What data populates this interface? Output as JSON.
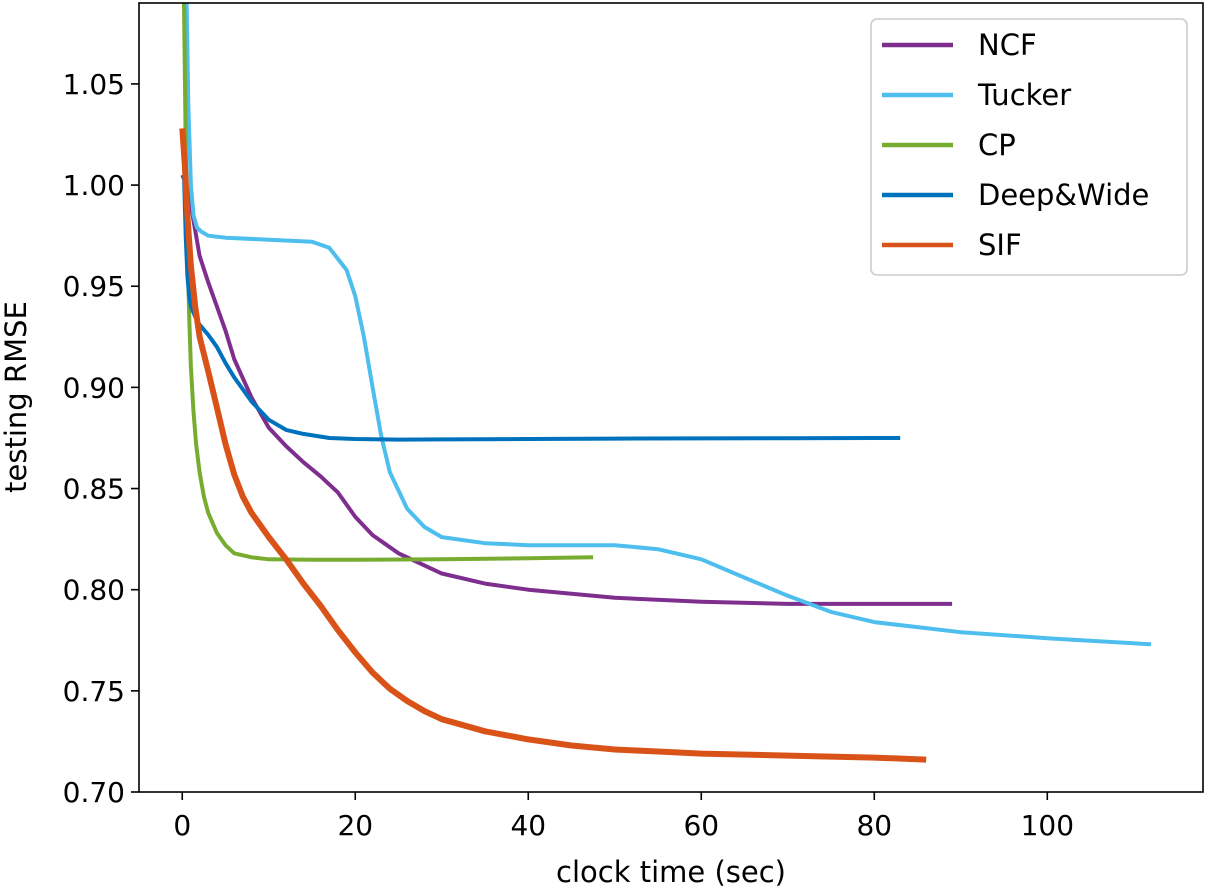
{
  "chart_data": {
    "type": "line",
    "title": "",
    "xlabel": "clock time (sec)",
    "ylabel": "testing RMSE",
    "xlim": [
      -5,
      118
    ],
    "ylim": [
      0.7,
      1.09
    ],
    "xticks": [
      0,
      20,
      40,
      60,
      80,
      100
    ],
    "xtick_labels": [
      "0",
      "20",
      "40",
      "60",
      "80",
      "100"
    ],
    "yticks": [
      0.7,
      0.75,
      0.8,
      0.85,
      0.9,
      0.95,
      1.0,
      1.05
    ],
    "ytick_labels": [
      "0.70",
      "0.75",
      "0.80",
      "0.85",
      "0.90",
      "0.95",
      "1.00",
      "1.05"
    ],
    "grid": false,
    "legend_position": "top-right",
    "series": [
      {
        "name": "NCF",
        "color": "#7e2f8e",
        "x": [
          0,
          0.5,
          1,
          2,
          3,
          4,
          5,
          6,
          8,
          10,
          12,
          14,
          16,
          18,
          20,
          22,
          25,
          30,
          35,
          40,
          45,
          50,
          60,
          70,
          80,
          89
        ],
        "y": [
          1.005,
          1.0,
          0.99,
          0.965,
          0.952,
          0.94,
          0.928,
          0.914,
          0.895,
          0.88,
          0.871,
          0.863,
          0.856,
          0.848,
          0.836,
          0.827,
          0.818,
          0.808,
          0.803,
          0.8,
          0.798,
          0.796,
          0.794,
          0.793,
          0.793,
          0.793
        ]
      },
      {
        "name": "Tucker",
        "color": "#4dbeee",
        "x": [
          0.5,
          0.7,
          1.0,
          1.3,
          1.7,
          2.2,
          3,
          5,
          10,
          15,
          17,
          19,
          20,
          21,
          22,
          23,
          24,
          26,
          28,
          30,
          35,
          40,
          50,
          55,
          60,
          65,
          70,
          75,
          80,
          90,
          100,
          112
        ],
        "y": [
          1.09,
          1.04,
          1.0,
          0.985,
          0.979,
          0.977,
          0.975,
          0.974,
          0.973,
          0.972,
          0.969,
          0.958,
          0.945,
          0.925,
          0.9,
          0.876,
          0.858,
          0.84,
          0.831,
          0.826,
          0.823,
          0.822,
          0.822,
          0.82,
          0.815,
          0.806,
          0.797,
          0.789,
          0.784,
          0.779,
          0.776,
          0.773
        ]
      },
      {
        "name": "CP",
        "color": "#77ac30",
        "x": [
          0.2,
          0.4,
          0.6,
          0.8,
          1.0,
          1.3,
          1.6,
          2.0,
          2.5,
          3,
          4,
          5,
          6,
          8,
          10,
          15,
          20,
          30,
          40,
          47.5
        ],
        "y": [
          1.09,
          1.02,
          0.97,
          0.935,
          0.91,
          0.888,
          0.872,
          0.858,
          0.846,
          0.838,
          0.828,
          0.822,
          0.818,
          0.816,
          0.815,
          0.8148,
          0.8148,
          0.815,
          0.8155,
          0.816
        ]
      },
      {
        "name": "Deep&Wide",
        "color": "#0072bd",
        "x": [
          0.2,
          0.4,
          0.6,
          0.8,
          1.0,
          1.5,
          2,
          3,
          4,
          5,
          6,
          8,
          10,
          12,
          14,
          17,
          20,
          25,
          30,
          40,
          50,
          60,
          70,
          80,
          83
        ],
        "y": [
          1.005,
          0.975,
          0.955,
          0.945,
          0.94,
          0.935,
          0.931,
          0.926,
          0.92,
          0.912,
          0.905,
          0.893,
          0.884,
          0.879,
          0.877,
          0.875,
          0.8745,
          0.8742,
          0.8743,
          0.8745,
          0.8747,
          0.8748,
          0.8749,
          0.875,
          0.875
        ]
      },
      {
        "name": "SIF",
        "color": "#d95319",
        "x": [
          0,
          0.3,
          0.6,
          1.0,
          1.5,
          2,
          3,
          4,
          5,
          6,
          7,
          8,
          10,
          12,
          14,
          16,
          18,
          20,
          22,
          24,
          26,
          28,
          30,
          35,
          40,
          45,
          50,
          55,
          60,
          70,
          80,
          86
        ],
        "y": [
          1.028,
          1.01,
          0.985,
          0.96,
          0.94,
          0.925,
          0.908,
          0.89,
          0.872,
          0.857,
          0.846,
          0.838,
          0.826,
          0.815,
          0.803,
          0.792,
          0.78,
          0.769,
          0.759,
          0.751,
          0.745,
          0.74,
          0.736,
          0.73,
          0.726,
          0.723,
          0.721,
          0.72,
          0.719,
          0.718,
          0.717,
          0.716
        ]
      }
    ]
  }
}
